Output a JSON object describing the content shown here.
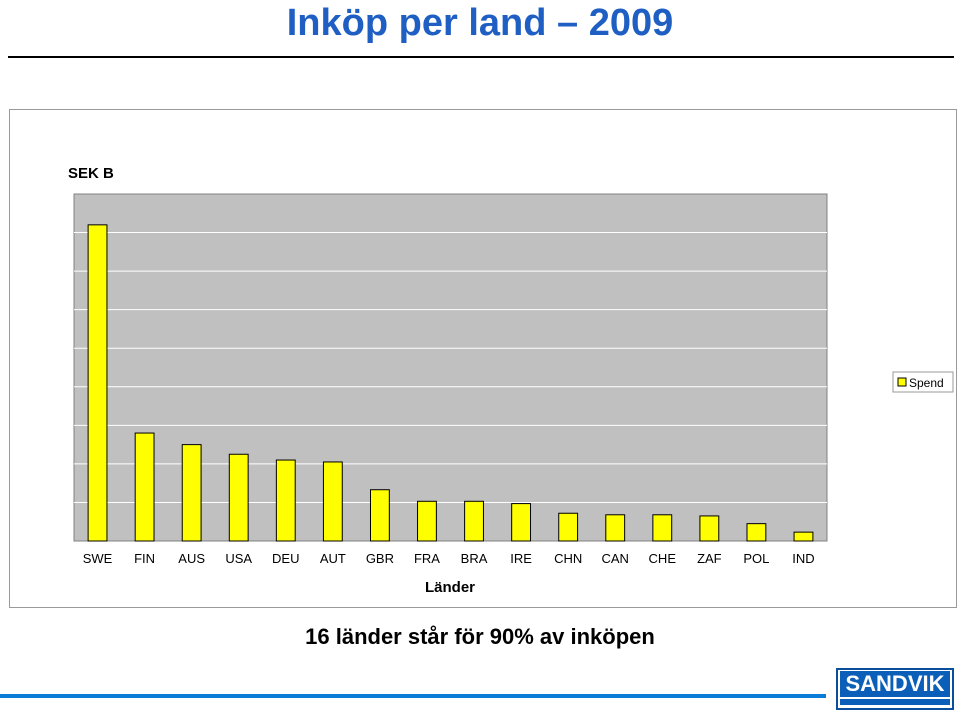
{
  "slide": {
    "title": "Inköp per land – 2009",
    "subtitle": "16 länder står för 90% av inköpen",
    "logo_text": "SANDVIK"
  },
  "chart_data": {
    "type": "bar",
    "ylabel": "SEK B",
    "xlabel": "Länder",
    "categories": [
      "SWE",
      "FIN",
      "AUS",
      "USA",
      "DEU",
      "AUT",
      "GBR",
      "FRA",
      "BRA",
      "IRE",
      "CHN",
      "CAN",
      "CHE",
      "ZAF",
      "POL",
      "IND"
    ],
    "series": [
      {
        "name": "Spend",
        "values": [
          8.2,
          2.8,
          2.5,
          2.25,
          2.1,
          2.05,
          1.33,
          1.03,
          1.03,
          0.97,
          0.72,
          0.68,
          0.68,
          0.65,
          0.45,
          0.23
        ],
        "color": "#ffff00"
      }
    ],
    "ylim": [
      0,
      9
    ],
    "grid": true,
    "legend": "right",
    "plot_background": "#c0c0c0",
    "gridline_color": "#ffffff"
  }
}
